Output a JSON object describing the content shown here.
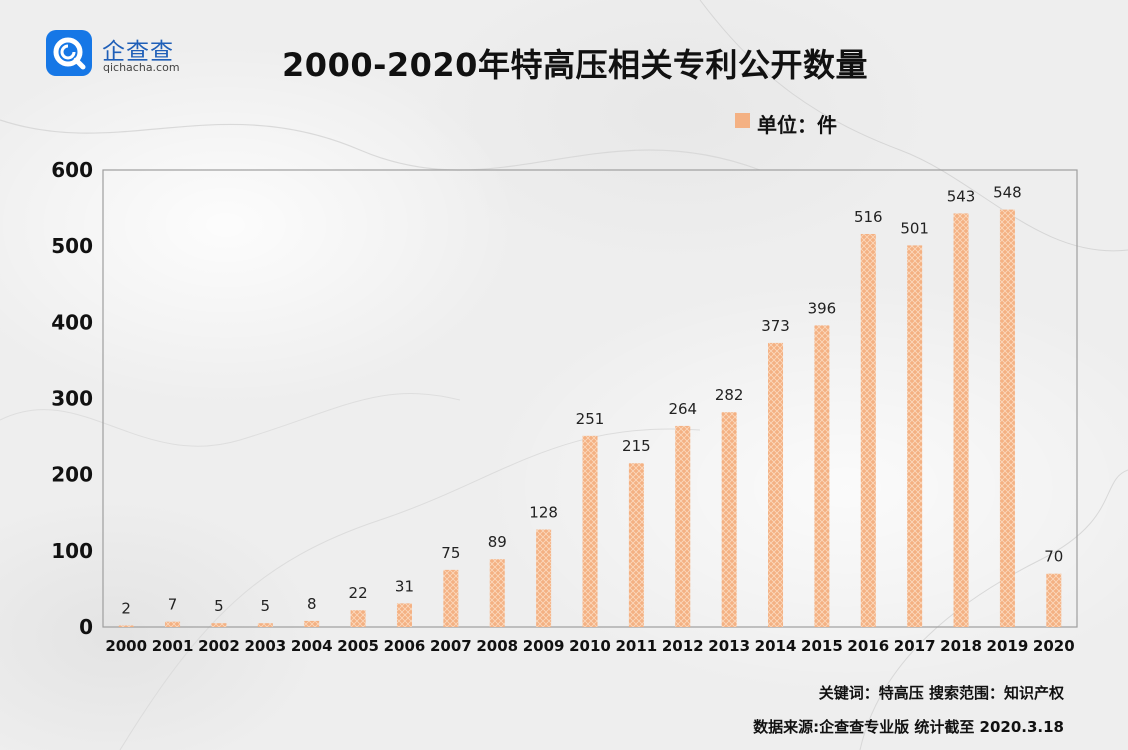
{
  "brand": {
    "name": "企查查",
    "domain": "qichacha.com",
    "color": "#1677e6"
  },
  "title": "2000-2020年特高压相关专利公开数量",
  "legend": {
    "label": "单位：件",
    "color": "#f4b183"
  },
  "footer": {
    "keywords": "关键词：特高压  搜索范围：知识产权",
    "source": "数据来源:企查查专业版  统计截至 2020.3.18"
  },
  "chart_data": {
    "type": "bar",
    "title": "2000-2020年特高压相关专利公开数量",
    "xlabel": "",
    "ylabel": "",
    "unit": "单位：件",
    "categories": [
      "2000",
      "2001",
      "2002",
      "2003",
      "2004",
      "2005",
      "2006",
      "2007",
      "2008",
      "2009",
      "2010",
      "2011",
      "2012",
      "2013",
      "2014",
      "2015",
      "2016",
      "2017",
      "2018",
      "2019",
      "2020"
    ],
    "values": [
      2,
      7,
      5,
      5,
      8,
      22,
      31,
      75,
      89,
      128,
      251,
      215,
      264,
      282,
      373,
      396,
      516,
      501,
      543,
      548,
      70
    ],
    "ylim": [
      0,
      600
    ],
    "yticks": [
      0,
      100,
      200,
      300,
      400,
      500,
      600
    ],
    "grid": false,
    "legend_position": "top-right",
    "bar_color": "#f4b183"
  }
}
